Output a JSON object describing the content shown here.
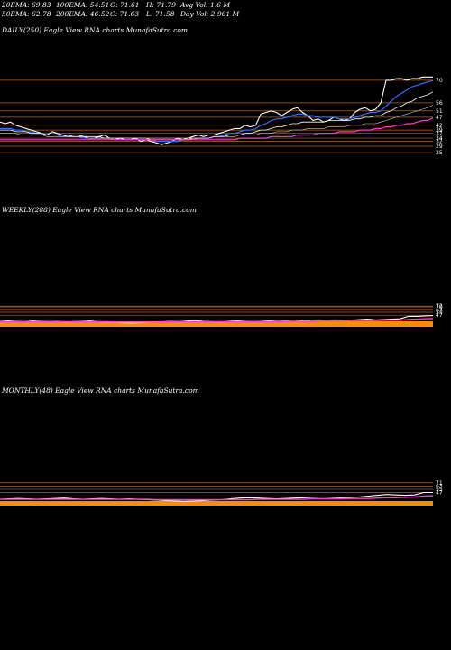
{
  "header": {
    "row1": [
      {
        "label": "20EMA: 69.83"
      },
      {
        "label": "100EMA: 54.51"
      },
      {
        "label": "O: 71.61"
      },
      {
        "label": "H: 71.79"
      },
      {
        "label": "Avg Vol: 1.6  M"
      }
    ],
    "row2": [
      {
        "label": "50EMA: 62.78"
      },
      {
        "label": "200EMA: 46.52"
      },
      {
        "label": "C: 71.63"
      },
      {
        "label": "L: 71.58"
      },
      {
        "label": "Day Vol: 2.961 M"
      }
    ]
  },
  "panels": {
    "daily": {
      "title": "DAILY(250) Eagle   View  RNA charts MunafaSutra.com"
    },
    "weekly": {
      "title": "WEEKLY(288) Eagle   View  RNA charts MunafaSutra.com"
    },
    "monthly": {
      "title": "MONTHLY(48) Eagle   View  RNA charts MunafaSutra.com"
    }
  },
  "colors": {
    "background": "#000000",
    "price": "#ffffff",
    "ema20": "#2f6fff",
    "ema50": "#ffffff",
    "ema100": "#cccccc",
    "ema200": "#ff3fd0",
    "level_line": "#b5651d",
    "volume": "#ff8c00"
  },
  "chart_data": [
    {
      "type": "line",
      "name": "daily",
      "levels": [
        70,
        56,
        51,
        47,
        42,
        39,
        37,
        34,
        32,
        29,
        25
      ],
      "ylim": [
        20,
        75
      ],
      "series": [
        {
          "name": "Price",
          "values": [
            44,
            43,
            44,
            42,
            41,
            40,
            39,
            38,
            37,
            36,
            38,
            37,
            36,
            35,
            36,
            36,
            35,
            34,
            34,
            35,
            36,
            34,
            33,
            34,
            33,
            33,
            34,
            32,
            33,
            32,
            31,
            30,
            31,
            32,
            34,
            33,
            34,
            35,
            36,
            35,
            36,
            36,
            37,
            38,
            39,
            40,
            40,
            42,
            41,
            42,
            49,
            50,
            51,
            50,
            48,
            50,
            52,
            53,
            50,
            48,
            45,
            46,
            44,
            45,
            47,
            46,
            45,
            46,
            50,
            52,
            53,
            51,
            52,
            56,
            70,
            70,
            71,
            71,
            70,
            71,
            71,
            72,
            72,
            72
          ]
        },
        {
          "name": "20EMA",
          "values": [
            40,
            40,
            40,
            39,
            39,
            38,
            38,
            37,
            37,
            36,
            36,
            36,
            35,
            35,
            35,
            35,
            34,
            34,
            34,
            34,
            34,
            34,
            33,
            33,
            33,
            33,
            33,
            33,
            33,
            33,
            32,
            32,
            32,
            32,
            32,
            33,
            33,
            33,
            34,
            34,
            34,
            35,
            35,
            36,
            37,
            37,
            38,
            39,
            39,
            40,
            42,
            43,
            45,
            46,
            46,
            47,
            48,
            49,
            49,
            48,
            48,
            47,
            47,
            47,
            47,
            46,
            46,
            46,
            47,
            48,
            49,
            50,
            50,
            51,
            54,
            57,
            60,
            62,
            64,
            66,
            67,
            68,
            69,
            69.83
          ]
        },
        {
          "name": "50EMA",
          "values": [
            39,
            39,
            39,
            38,
            38,
            38,
            37,
            37,
            37,
            36,
            36,
            36,
            36,
            35,
            35,
            35,
            35,
            35,
            35,
            35,
            34,
            34,
            34,
            34,
            34,
            34,
            34,
            34,
            34,
            33,
            33,
            33,
            33,
            33,
            33,
            33,
            33,
            34,
            34,
            34,
            34,
            35,
            35,
            35,
            36,
            36,
            36,
            37,
            37,
            38,
            39,
            39,
            40,
            41,
            41,
            42,
            43,
            43,
            44,
            44,
            44,
            44,
            44,
            45,
            45,
            45,
            45,
            45,
            46,
            46,
            47,
            47,
            48,
            48,
            50,
            51,
            53,
            54,
            56,
            57,
            59,
            60,
            61,
            62.78
          ]
        },
        {
          "name": "100EMA",
          "values": [
            37,
            37,
            37,
            37,
            36,
            36,
            36,
            36,
            36,
            35,
            35,
            35,
            35,
            35,
            35,
            35,
            35,
            34,
            34,
            34,
            34,
            34,
            34,
            34,
            34,
            34,
            34,
            34,
            34,
            34,
            34,
            34,
            34,
            34,
            34,
            34,
            34,
            34,
            34,
            34,
            34,
            35,
            35,
            35,
            35,
            35,
            36,
            36,
            36,
            36,
            37,
            37,
            37,
            38,
            38,
            38,
            39,
            39,
            39,
            40,
            40,
            40,
            40,
            41,
            41,
            41,
            41,
            42,
            42,
            42,
            43,
            43,
            43,
            44,
            45,
            46,
            47,
            48,
            49,
            50,
            51,
            52,
            53,
            54.51
          ]
        },
        {
          "name": "200EMA",
          "values": [
            33,
            33,
            33,
            33,
            33,
            33,
            33,
            33,
            33,
            33,
            33,
            33,
            33,
            33,
            33,
            33,
            33,
            33,
            33,
            33,
            33,
            33,
            33,
            33,
            33,
            33,
            33,
            33,
            33,
            33,
            33,
            33,
            33,
            33,
            33,
            33,
            33,
            33,
            33,
            33,
            33,
            33,
            33,
            33,
            33,
            33,
            34,
            34,
            34,
            34,
            34,
            34,
            35,
            35,
            35,
            35,
            35,
            36,
            36,
            36,
            36,
            37,
            37,
            37,
            37,
            38,
            38,
            38,
            38,
            39,
            39,
            39,
            40,
            40,
            41,
            41,
            42,
            42,
            43,
            43,
            44,
            45,
            45,
            46.52
          ]
        }
      ]
    },
    {
      "type": "line",
      "name": "weekly",
      "levels": [
        72,
        70,
        63,
        55,
        47
      ],
      "series": [
        {
          "name": "Price",
          "values": [
            30,
            31,
            30,
            29,
            31,
            30,
            29,
            30,
            28,
            29,
            30,
            31,
            29,
            28,
            27,
            26,
            25,
            26,
            27,
            28,
            29,
            30,
            29,
            31,
            32,
            30,
            29,
            28,
            30,
            31,
            30,
            29,
            30,
            31,
            30,
            31,
            30,
            32,
            33,
            34,
            33,
            34,
            33,
            33,
            35,
            36,
            34,
            35,
            36,
            37,
            44,
            44,
            45,
            46
          ]
        },
        {
          "name": "EMA",
          "values": [
            29,
            29,
            29,
            29,
            29,
            29,
            29,
            29,
            29,
            29,
            29,
            29,
            29,
            29,
            28,
            28,
            28,
            28,
            28,
            28,
            28,
            29,
            29,
            29,
            29,
            29,
            29,
            29,
            29,
            29,
            29,
            29,
            29,
            29,
            29,
            30,
            30,
            30,
            30,
            31,
            31,
            31,
            31,
            32,
            32,
            32,
            32,
            33,
            33,
            33,
            35,
            36,
            37,
            38
          ]
        }
      ]
    },
    {
      "type": "line",
      "name": "monthly",
      "levels": [
        71,
        63,
        55,
        47
      ],
      "series": [
        {
          "name": "Price",
          "values": [
            30,
            31,
            32,
            31,
            30,
            31,
            32,
            33,
            31,
            30,
            31,
            32,
            31,
            30,
            31,
            30,
            29,
            28,
            27,
            26,
            25,
            26,
            27,
            28,
            29,
            31,
            33,
            34,
            33,
            32,
            31,
            32,
            33,
            34,
            35,
            36,
            35,
            34,
            35,
            36,
            38,
            40,
            42,
            41,
            40,
            41,
            47,
            47
          ]
        },
        {
          "name": "EMA",
          "values": [
            30,
            30,
            30,
            30,
            30,
            30,
            30,
            30,
            30,
            30,
            30,
            30,
            30,
            30,
            30,
            30,
            30,
            29,
            29,
            29,
            29,
            29,
            29,
            29,
            29,
            29,
            29,
            29,
            30,
            30,
            30,
            30,
            30,
            30,
            31,
            31,
            31,
            31,
            32,
            32,
            32,
            33,
            34,
            34,
            35,
            36,
            38,
            39
          ]
        }
      ]
    }
  ]
}
